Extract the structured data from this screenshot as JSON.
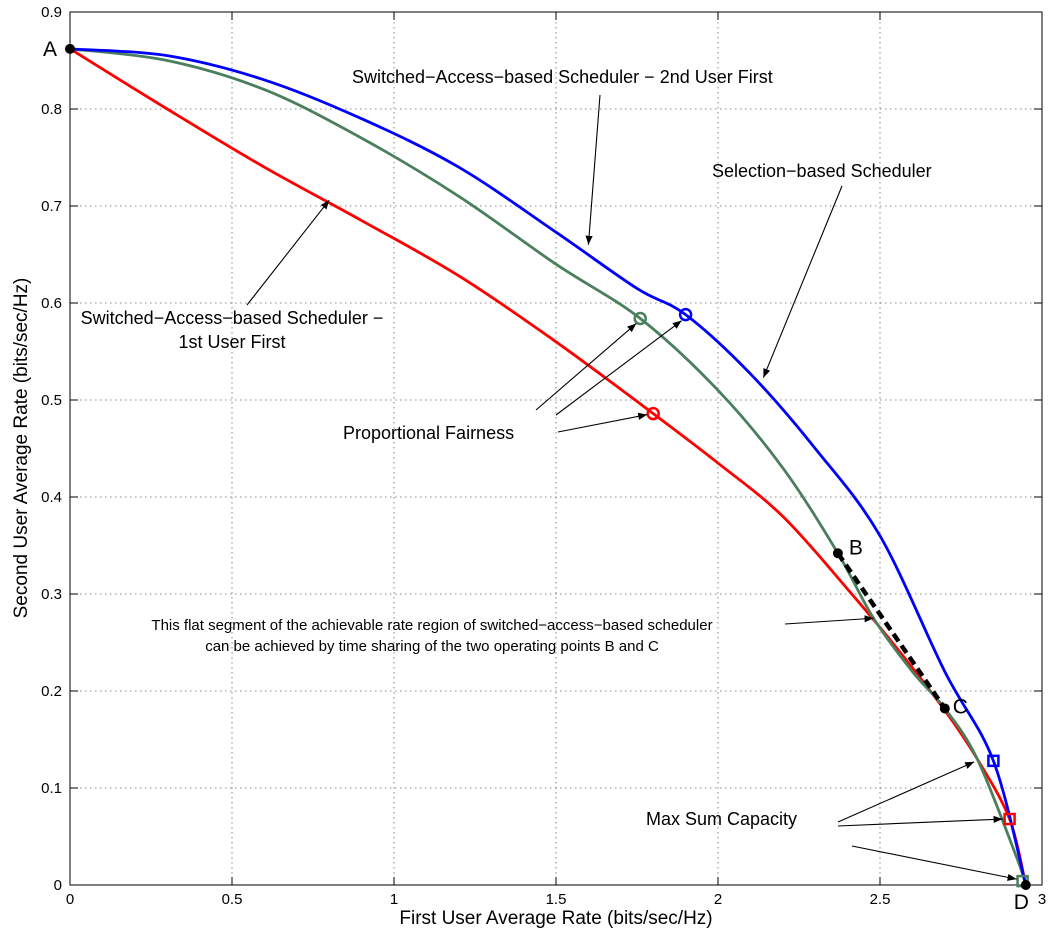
{
  "chart_data": {
    "type": "line",
    "xlabel": "First User Average Rate (bits/sec/Hz)",
    "ylabel": "Second User Average Rate (bits/sec/Hz)",
    "xlim": [
      0,
      3
    ],
    "ylim": [
      0,
      0.9
    ],
    "xticks": [
      "0",
      "0.5",
      "1",
      "1.5",
      "2",
      "2.5",
      "3"
    ],
    "yticks": [
      "0",
      "0.1",
      "0.2",
      "0.3",
      "0.4",
      "0.5",
      "0.6",
      "0.7",
      "0.8",
      "0.9"
    ],
    "grid": true,
    "series": [
      {
        "name": "Selection-based Scheduler",
        "color": "#0000ff",
        "x": [
          0,
          0.3,
          0.6,
          0.9,
          1.2,
          1.5,
          1.75,
          1.9,
          2.1,
          2.3,
          2.5,
          2.7,
          2.85,
          2.95
        ],
        "y": [
          0.862,
          0.855,
          0.83,
          0.79,
          0.74,
          0.673,
          0.615,
          0.588,
          0.527,
          0.45,
          0.36,
          0.22,
          0.128,
          0
        ]
      },
      {
        "name": "Switched-Access-based Scheduler - 2nd User First",
        "color": "#4a7f5e",
        "x": [
          0,
          0.3,
          0.6,
          0.9,
          1.2,
          1.5,
          1.76,
          2.0,
          2.2,
          2.37,
          2.48,
          2.6,
          2.7,
          2.8,
          2.92,
          2.95
        ],
        "y": [
          0.862,
          0.85,
          0.82,
          0.77,
          0.71,
          0.64,
          0.584,
          0.51,
          0.43,
          0.342,
          0.275,
          0.22,
          0.182,
          0.13,
          0.03,
          0
        ]
      },
      {
        "name": "Switched-Access-based Scheduler - 1st User First",
        "color": "#ff0000",
        "x": [
          0,
          0.3,
          0.6,
          0.9,
          1.2,
          1.5,
          1.8,
          2.0,
          2.2,
          2.4,
          2.55,
          2.7,
          2.8,
          2.9,
          2.95
        ],
        "y": [
          0.862,
          0.8,
          0.74,
          0.685,
          0.628,
          0.56,
          0.486,
          0.435,
          0.38,
          0.305,
          0.245,
          0.18,
          0.13,
          0.068,
          0
        ]
      }
    ],
    "flat_segment": {
      "x": [
        2.37,
        2.7
      ],
      "y": [
        0.342,
        0.182
      ]
    },
    "proportional_fairness": [
      {
        "series": "Switched-Access-based Scheduler - 2nd User First",
        "x": 1.76,
        "y": 0.584,
        "color": "#4a7f5e"
      },
      {
        "series": "Selection-based Scheduler",
        "x": 1.9,
        "y": 0.588,
        "color": "#0000ff"
      },
      {
        "series": "Switched-Access-based Scheduler - 1st User First",
        "x": 1.8,
        "y": 0.486,
        "color": "#ff0000"
      }
    ],
    "max_sum_capacity": [
      {
        "series": "Selection-based Scheduler",
        "x": 2.85,
        "y": 0.128,
        "color": "#0000ff"
      },
      {
        "series": "Switched-Access-based Scheduler - 1st User First",
        "x": 2.9,
        "y": 0.068,
        "color": "#ff0000"
      },
      {
        "series": "Switched-Access-based Scheduler - 2nd User First",
        "x": 2.94,
        "y": 0.004,
        "color": "#4a7f5e"
      }
    ],
    "labeled_points": [
      {
        "label": "A",
        "x": 0,
        "y": 0.862
      },
      {
        "label": "B",
        "x": 2.37,
        "y": 0.342
      },
      {
        "label": "C",
        "x": 2.7,
        "y": 0.182
      },
      {
        "label": "D",
        "x": 2.95,
        "y": 0
      }
    ],
    "annotations": {
      "sa_2nd": "Switched−Access−based Scheduler − 2nd User First",
      "selection": "Selection−based Scheduler",
      "sa_1st_line1": "Switched−Access−based Scheduler −",
      "sa_1st_line2": "1st User First",
      "pf": "Proportional Fairness",
      "flat_line1": "This flat segment of the achievable rate region of switched−access−based scheduler",
      "flat_line2": "can be achieved by time sharing of the two operating points B and C",
      "msc": "Max Sum Capacity"
    }
  }
}
